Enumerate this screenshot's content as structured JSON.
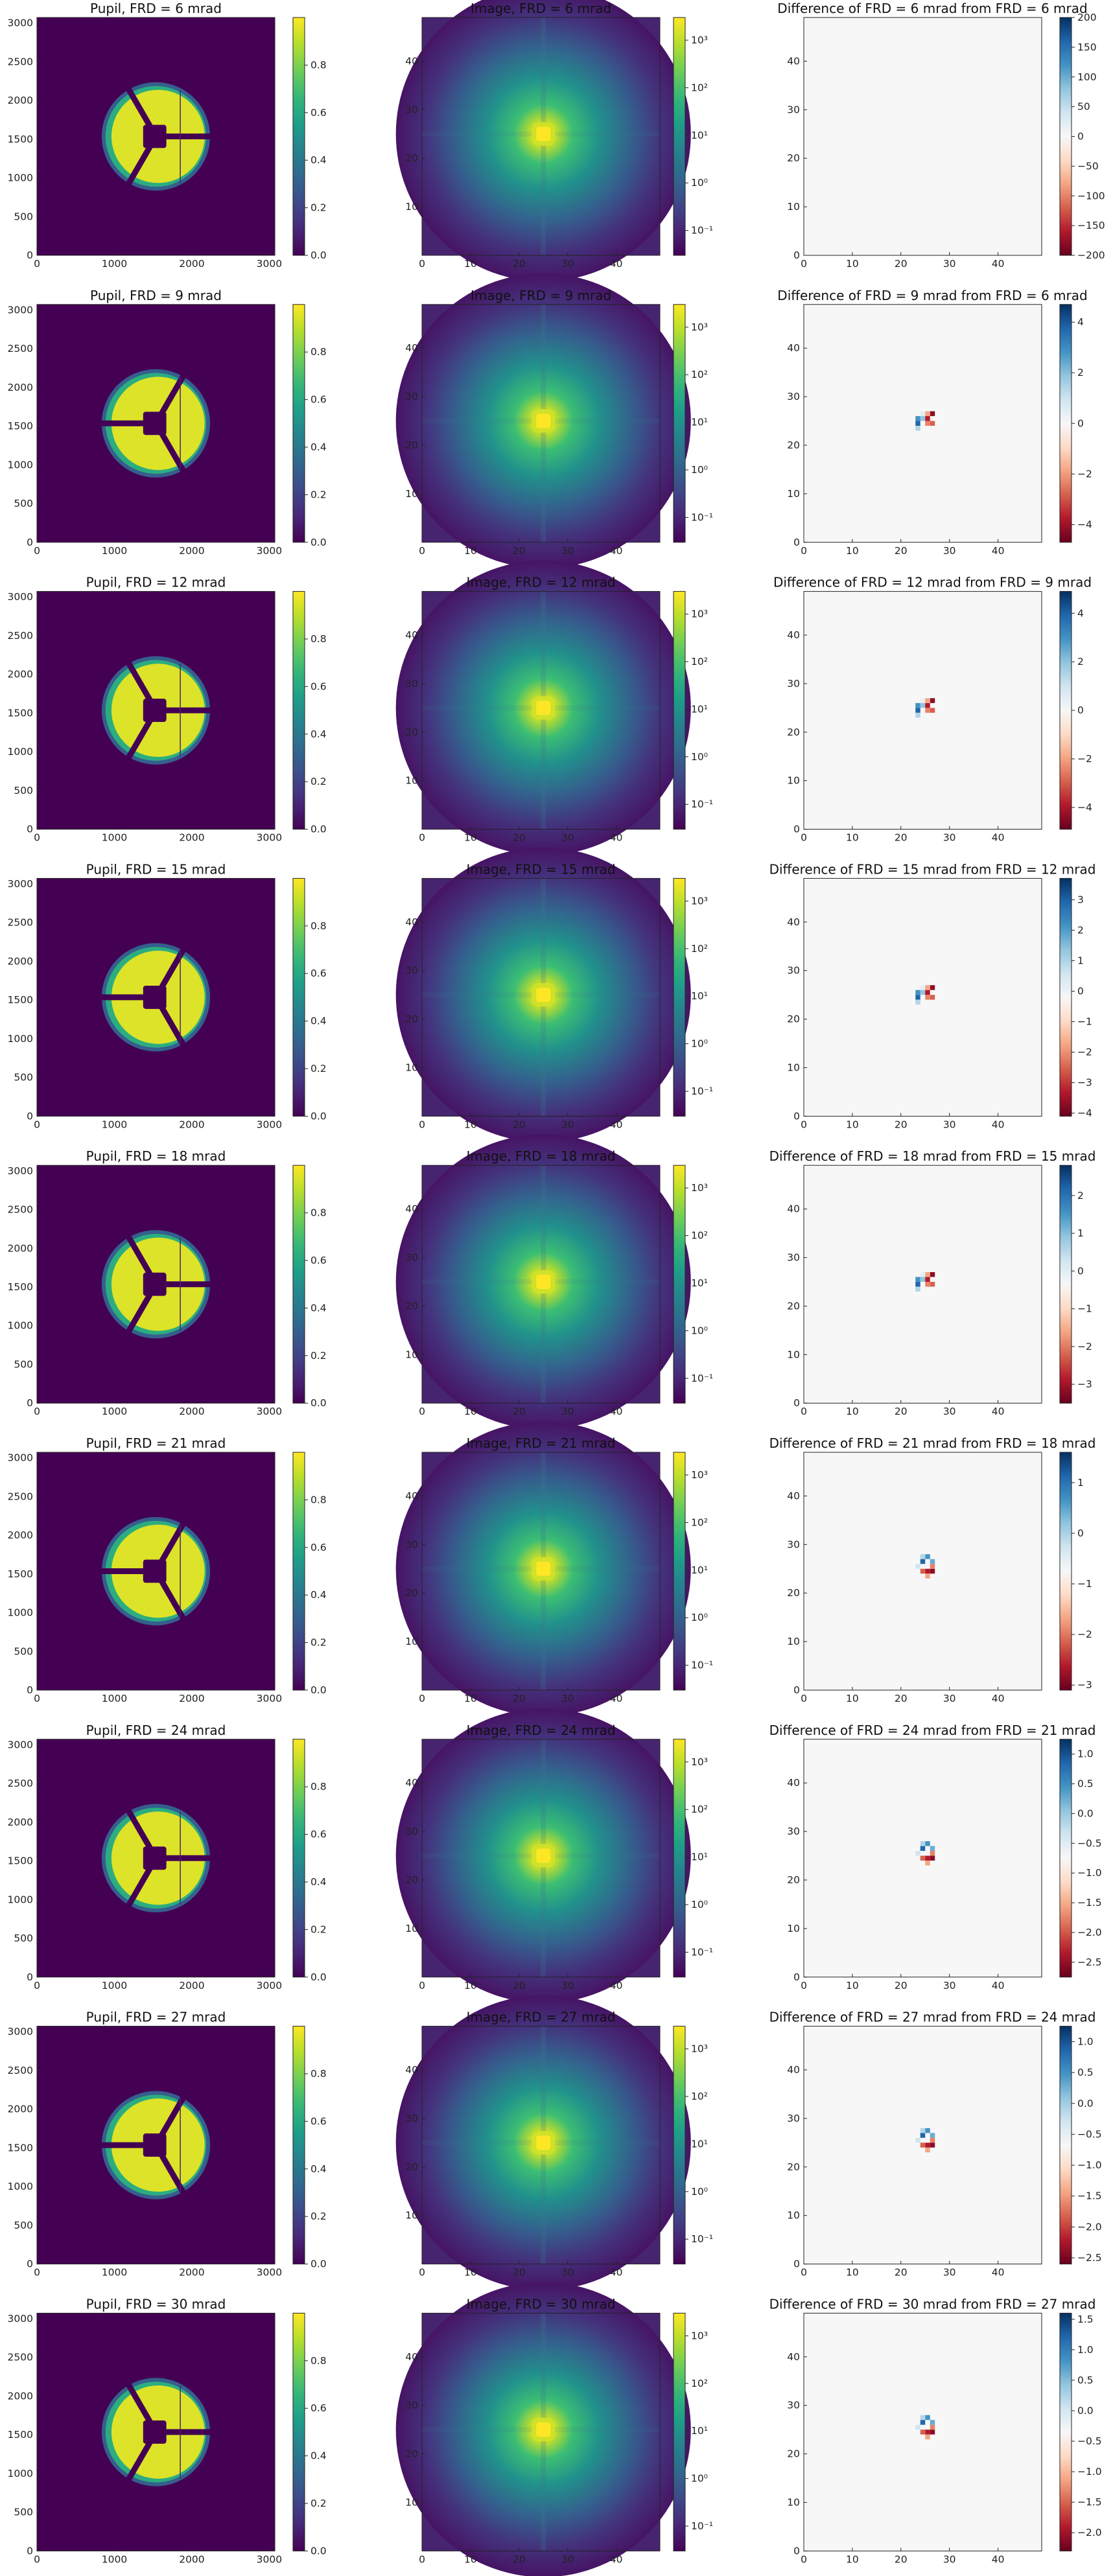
{
  "chart_data": {
    "type": "heatmap",
    "layout": {
      "rows": 9,
      "columns": [
        "Pupil",
        "Image",
        "Difference"
      ]
    },
    "pupil": {
      "x_range": [
        0,
        3072
      ],
      "y_range": [
        0,
        3072
      ],
      "x_ticks": [
        0,
        1000,
        2000,
        3000
      ],
      "y_ticks": [
        0,
        500,
        1000,
        1500,
        2000,
        2500,
        3000
      ],
      "colormap": "viridis",
      "colorbar": {
        "range": [
          0,
          1
        ],
        "ticks": [
          0.0,
          0.2,
          0.4,
          0.6,
          0.8
        ],
        "tick_labels": [
          "0.0",
          "0.2",
          "0.4",
          "0.6",
          "0.8"
        ]
      },
      "features": {
        "aperture_center": [
          1536,
          1536
        ],
        "outer_radius": 700,
        "central_obscuration_half_size": 150,
        "vane_angles_deg": [
          0,
          120,
          240
        ]
      }
    },
    "image": {
      "x_range": [
        0,
        49
      ],
      "y_range": [
        0,
        49
      ],
      "x_ticks": [
        0,
        10,
        20,
        30,
        40
      ],
      "y_ticks": [
        10,
        20,
        30,
        40
      ],
      "colormap": "viridis",
      "scale": "log",
      "colorbar": {
        "range": [
          0.03,
          3000
        ],
        "tick_labels": [
          "10⁻¹",
          "10⁰",
          "10¹",
          "10²",
          "10³"
        ],
        "tick_values": [
          0.1,
          1,
          10,
          100,
          1000
        ]
      },
      "features": {
        "spot_center": [
          25,
          25
        ]
      }
    },
    "difference": {
      "x_range": [
        0,
        49
      ],
      "y_range": [
        0,
        49
      ],
      "x_ticks": [
        0,
        10,
        20,
        30,
        40
      ],
      "y_ticks": [
        0,
        10,
        20,
        30,
        40
      ],
      "colormap": "RdBu"
    },
    "rows": [
      {
        "frd": 6,
        "pupil_title": "Pupil, FRD = 6 mrad",
        "image_title": "Image, FRD = 6 mrad",
        "diff_title": "Difference of FRD = 6 mrad from FRD = 6 mrad",
        "diff_cbar": {
          "range": [
            -200,
            200
          ],
          "tick_labels": [
            "200",
            "150",
            "100",
            "50",
            "0",
            "−50",
            "−100",
            "−150",
            "−200"
          ],
          "tick_values": [
            200,
            150,
            100,
            50,
            0,
            -50,
            -100,
            -150,
            -200
          ]
        }
      },
      {
        "frd": 9,
        "pupil_title": "Pupil, FRD = 9 mrad",
        "image_title": "Image, FRD = 9 mrad",
        "diff_title": "Difference of FRD = 9 mrad from FRD = 6 mrad",
        "diff_cbar": {
          "range": [
            -4.7,
            4.7
          ],
          "tick_labels": [
            "4",
            "2",
            "0",
            "−2",
            "−4"
          ],
          "tick_values": [
            4,
            2,
            0,
            -2,
            -4
          ]
        }
      },
      {
        "frd": 12,
        "pupil_title": "Pupil, FRD = 12 mrad",
        "image_title": "Image, FRD = 12 mrad",
        "diff_title": "Difference of FRD = 12 mrad from FRD = 9 mrad",
        "diff_cbar": {
          "range": [
            -4.9,
            4.9
          ],
          "tick_labels": [
            "4",
            "2",
            "0",
            "−2",
            "−4"
          ],
          "tick_values": [
            4,
            2,
            0,
            -2,
            -4
          ]
        }
      },
      {
        "frd": 15,
        "pupil_title": "Pupil, FRD = 15 mrad",
        "image_title": "Image, FRD = 15 mrad",
        "diff_title": "Difference of FRD = 15 mrad from FRD = 12 mrad",
        "diff_cbar": {
          "range": [
            -4.1,
            3.7
          ],
          "tick_labels": [
            "3",
            "2",
            "1",
            "0",
            "−1",
            "−2",
            "−3",
            "−4"
          ],
          "tick_values": [
            3,
            2,
            1,
            0,
            -1,
            -2,
            -3,
            -4
          ]
        }
      },
      {
        "frd": 18,
        "pupil_title": "Pupil, FRD = 18 mrad",
        "image_title": "Image, FRD = 18 mrad",
        "diff_title": "Difference of FRD = 18 mrad from FRD = 15 mrad",
        "diff_cbar": {
          "range": [
            -3.5,
            2.8
          ],
          "tick_labels": [
            "2",
            "1",
            "0",
            "−1",
            "−2",
            "−3"
          ],
          "tick_values": [
            2,
            1,
            0,
            -1,
            -2,
            -3
          ]
        }
      },
      {
        "frd": 21,
        "pupil_title": "Pupil, FRD = 21 mrad",
        "image_title": "Image, FRD = 21 mrad",
        "diff_title": "Difference of FRD = 21 mrad from FRD = 18 mrad",
        "diff_cbar": {
          "range": [
            -3.1,
            1.6
          ],
          "tick_labels": [
            "1",
            "0",
            "−1",
            "−2",
            "−3"
          ],
          "tick_values": [
            1,
            0,
            -1,
            -2,
            -3
          ]
        }
      },
      {
        "frd": 24,
        "pupil_title": "Pupil, FRD = 24 mrad",
        "image_title": "Image, FRD = 24 mrad",
        "diff_title": "Difference of FRD = 24 mrad from FRD = 21 mrad",
        "diff_cbar": {
          "range": [
            -2.75,
            1.25
          ],
          "tick_labels": [
            "1.0",
            "0.5",
            "0.0",
            "−0.5",
            "−1.0",
            "−1.5",
            "−2.0",
            "−2.5"
          ],
          "tick_values": [
            1.0,
            0.5,
            0.0,
            -0.5,
            -1.0,
            -1.5,
            -2.0,
            -2.5
          ]
        }
      },
      {
        "frd": 27,
        "pupil_title": "Pupil, FRD = 27 mrad",
        "image_title": "Image, FRD = 27 mrad",
        "diff_title": "Difference of FRD = 27 mrad from FRD = 24 mrad",
        "diff_cbar": {
          "range": [
            -2.6,
            1.25
          ],
          "tick_labels": [
            "1.0",
            "0.5",
            "0.0",
            "−0.5",
            "−1.0",
            "−1.5",
            "−2.0",
            "−2.5"
          ],
          "tick_values": [
            1.0,
            0.5,
            0.0,
            -0.5,
            -1.0,
            -1.5,
            -2.0,
            -2.5
          ]
        }
      },
      {
        "frd": 30,
        "pupil_title": "Pupil, FRD = 30 mrad",
        "image_title": "Image, FRD = 30 mrad",
        "diff_title": "Difference of FRD = 30 mrad from FRD = 27 mrad",
        "diff_cbar": {
          "range": [
            -2.3,
            1.6
          ],
          "tick_labels": [
            "1.5",
            "1.0",
            "0.5",
            "0.0",
            "−0.5",
            "−1.0",
            "−1.5",
            "−2.0"
          ],
          "tick_values": [
            1.5,
            1.0,
            0.5,
            0.0,
            -0.5,
            -1.0,
            -1.5,
            -2.0
          ]
        }
      }
    ]
  }
}
